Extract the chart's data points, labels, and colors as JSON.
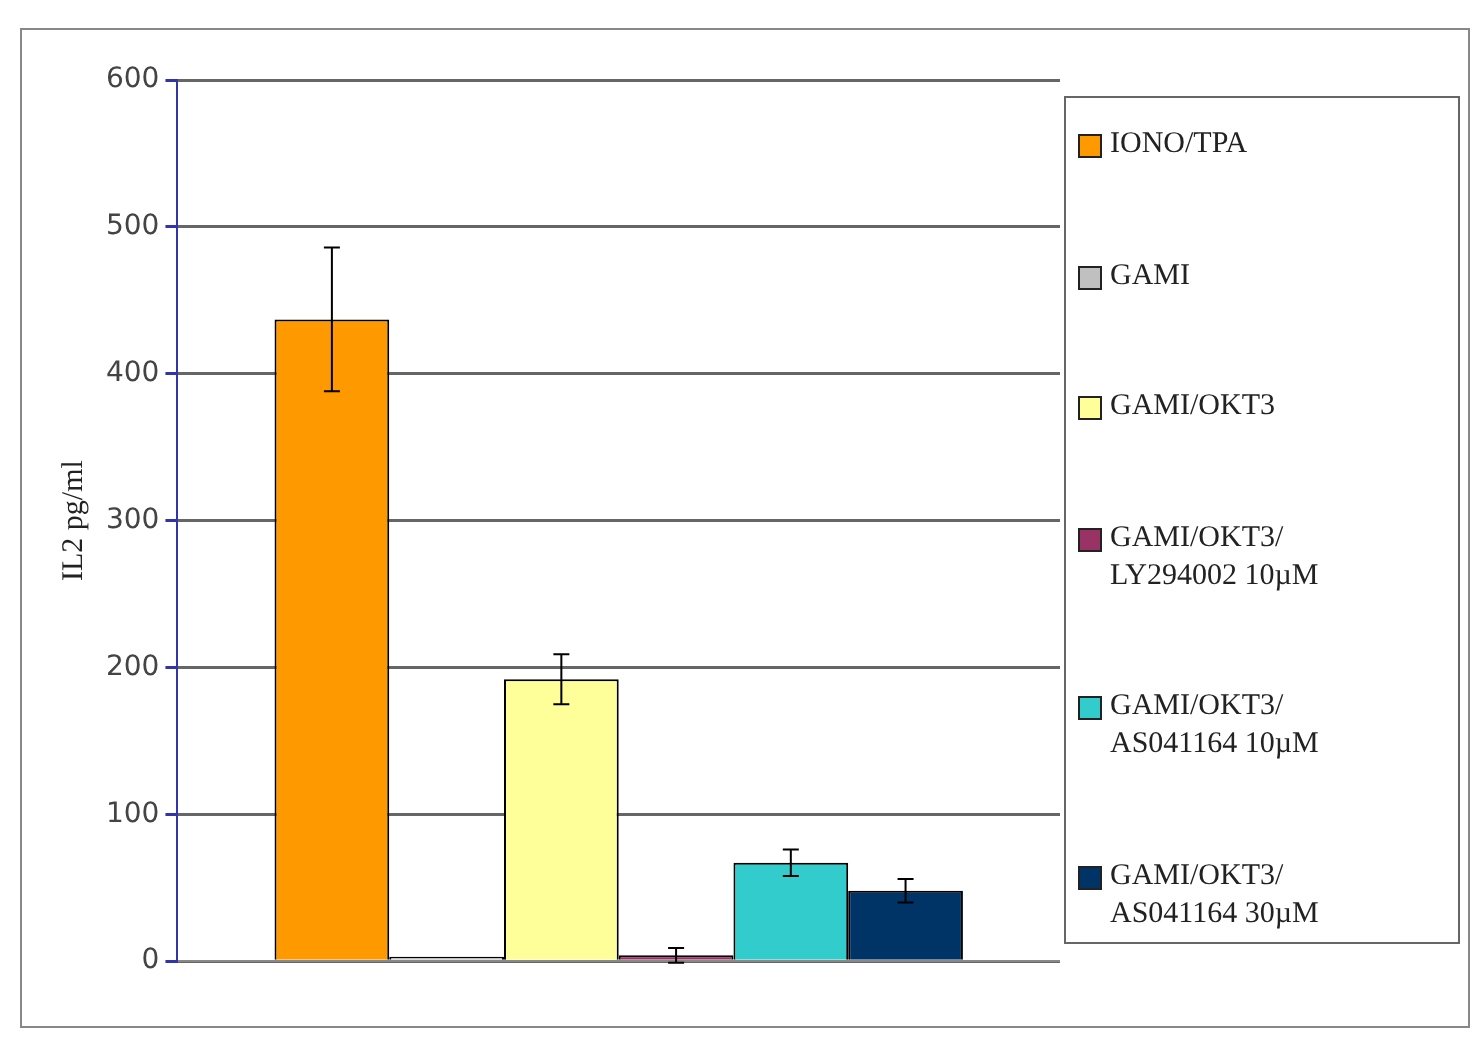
{
  "chart_data": {
    "type": "bar",
    "ylabel": "IL2 pg/ml",
    "categories": [
      null
    ],
    "ylim": [
      0,
      600
    ],
    "yticks": [
      0,
      100,
      200,
      300,
      400,
      500,
      600
    ],
    "grid": "y",
    "legend": "right",
    "series": [
      {
        "name": "IONO/TPA",
        "color": "#ff9900",
        "values": [
          437
        ],
        "errors": [
          49
        ]
      },
      {
        "name": "GAMI",
        "color": "#c0c0c0",
        "values": [
          3
        ]
      },
      {
        "name": "GAMI/OKT3",
        "color": "#ffff99",
        "values": [
          192
        ],
        "errors": [
          17
        ]
      },
      {
        "name": "GAMI/OKT3/LY294002 10µM",
        "color": "#993366",
        "values": [
          4
        ],
        "errors": [
          5
        ]
      },
      {
        "name": "GAMI/OKT3/AS041164 10µM",
        "color": "#33cccc",
        "values": [
          67
        ],
        "errors": [
          9
        ]
      },
      {
        "name": "GAMI/OKT3/AS041164 30µM",
        "color": "#003366",
        "values": [
          48
        ],
        "errors": [
          8
        ]
      }
    ]
  }
}
